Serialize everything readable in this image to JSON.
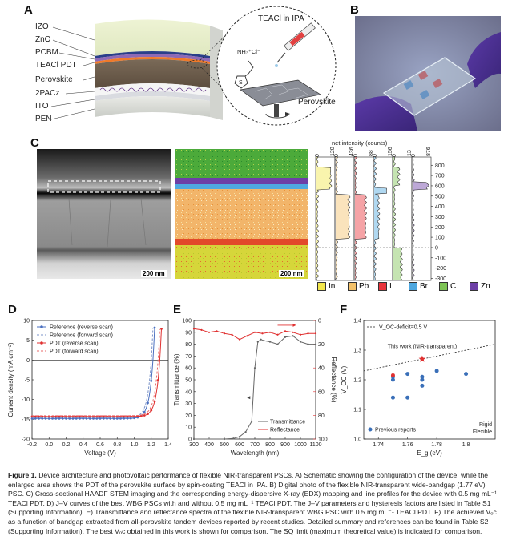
{
  "panelA": {
    "label": "A",
    "layers": [
      "IZO",
      "ZnO",
      "PCBM",
      "TEACl PDT",
      "Perovskite",
      "2PACz",
      "ITO",
      "PEN"
    ],
    "inset_title": "TEACl in IPA",
    "inset_formula": "NH₃⁺Cl⁻",
    "inset_s": "S",
    "inset_perovskite": "Perovskite"
  },
  "panelB": {
    "label": "B"
  },
  "panelC": {
    "label": "C",
    "scalebar_left": "200 nm",
    "scalebar_right": "200 nm",
    "top_axis_title": "net intensity (counts)",
    "top_ticks": [
      [
        "0",
        "120"
      ],
      [
        "0",
        "436"
      ],
      [
        "0",
        "88"
      ],
      [
        "0",
        "156"
      ],
      [
        "0",
        "13"
      ],
      [
        "0",
        "876"
      ]
    ],
    "yticks": [
      "800",
      "700",
      "600",
      "500",
      "400",
      "300",
      "200",
      "100",
      "0",
      "-100",
      "-200",
      "-300"
    ],
    "legend": [
      {
        "name": "In",
        "color": "#f2e64a"
      },
      {
        "name": "Pb",
        "color": "#f4c26a"
      },
      {
        "name": "I",
        "color": "#e8333a"
      },
      {
        "name": "Br",
        "color": "#4fa8e0"
      },
      {
        "name": "C",
        "color": "#7ec455"
      },
      {
        "name": "Zn",
        "color": "#6d3fa6"
      }
    ]
  },
  "panelD": {
    "label": "D",
    "chart_data": {
      "type": "line",
      "xlabel": "Voltage (V)",
      "ylabel": "Current density (mA cm⁻²)",
      "xlim": [
        -0.2,
        1.4
      ],
      "ylim": [
        -20,
        10
      ],
      "xticks": [
        "-0.2",
        "0.0",
        "0.2",
        "0.4",
        "0.6",
        "0.8",
        "1.0",
        "1.2",
        "1.4"
      ],
      "yticks": [
        "10",
        "5",
        "0",
        "-5",
        "-10",
        "-15",
        "-20"
      ],
      "series": [
        {
          "name": "Reference (reverse scan)",
          "color": "#4a6fc0",
          "style": "marker",
          "jsc": -14.8,
          "voc": 1.22
        },
        {
          "name": "Reference (forward scan)",
          "color": "#7b93c9",
          "style": "dash",
          "jsc": -14.6,
          "voc": 1.2
        },
        {
          "name": "PDT (reverse scan)",
          "color": "#e03030",
          "style": "marker",
          "jsc": -14.3,
          "voc": 1.3
        },
        {
          "name": "PDT (forward scan)",
          "color": "#e86a6a",
          "style": "dash",
          "jsc": -14.1,
          "voc": 1.28
        }
      ]
    }
  },
  "panelE": {
    "label": "E",
    "chart_data": {
      "type": "line",
      "xlabel": "Wavelength (nm)",
      "ylabel": "Transmittance (%)",
      "y2label": "Reflectance (%)",
      "xlim": [
        300,
        1100
      ],
      "ylim": [
        0,
        100
      ],
      "y2lim": [
        0,
        100
      ],
      "xticks": [
        "300",
        "400",
        "500",
        "600",
        "700",
        "800",
        "900",
        "1000",
        "1100"
      ],
      "yticks": [
        "100",
        "90",
        "80",
        "70",
        "60",
        "50",
        "40",
        "30",
        "20",
        "10",
        "0"
      ],
      "y2ticks": [
        "0",
        "20",
        "40",
        "60",
        "80",
        "100"
      ],
      "series": [
        {
          "name": "Transmittance",
          "color": "#666666",
          "x": [
            300,
            500,
            560,
            600,
            640,
            680,
            700,
            720,
            740,
            760,
            800,
            850,
            900,
            950,
            1000,
            1050,
            1100
          ],
          "y": [
            0,
            0,
            0.5,
            2,
            6,
            15,
            60,
            82,
            84,
            83,
            82,
            80,
            86,
            87,
            82,
            80,
            80
          ]
        },
        {
          "name": "Reflectance",
          "color": "#e03030",
          "x": [
            300,
            350,
            400,
            450,
            500,
            550,
            600,
            650,
            700,
            750,
            800,
            850,
            900,
            950,
            1000,
            1050,
            1100
          ],
          "y": [
            7,
            8,
            10,
            9,
            11,
            12,
            16,
            13,
            10,
            11,
            10,
            12,
            9,
            10,
            12,
            11,
            11
          ]
        }
      ]
    }
  },
  "panelF": {
    "label": "F",
    "chart_data": {
      "type": "scatter",
      "xlabel": "E_g (eV)",
      "ylabel": "V_OC (V)",
      "xlim": [
        1.73,
        1.82
      ],
      "ylim": [
        1.0,
        1.4
      ],
      "xticks": [
        "1.74",
        "1.76",
        "1.78",
        "1.8"
      ],
      "yticks": [
        "1.4",
        "1.3",
        "1.2",
        "1.1",
        "1.0"
      ],
      "deficit_label": "V_OC-deficit=0.5 V",
      "deficit_line": {
        "x": [
          1.73,
          1.82
        ],
        "y": [
          1.23,
          1.32
        ]
      },
      "this_work_label": "This work (NIR-transparent)",
      "this_work": {
        "x": 1.77,
        "y": 1.27
      },
      "previous_label": "Previous reports",
      "rigid_label": "Rigid",
      "flexible_label": "Flexible",
      "rigid": {
        "x": [
          1.75,
          1.75,
          1.75,
          1.76,
          1.76,
          1.77,
          1.77,
          1.77,
          1.78,
          1.8
        ],
        "y": [
          1.21,
          1.2,
          1.14,
          1.22,
          1.14,
          1.21,
          1.2,
          1.18,
          1.23,
          1.22
        ]
      },
      "flexible": {
        "x": [
          1.75
        ],
        "y": [
          1.215
        ]
      }
    }
  },
  "caption": {
    "lead": "Figure 1.",
    "text": " Device architecture and photovoltaic performance of flexible NIR-transparent PSCs. A) Schematic showing the configuration of the device, while the enlarged area shows the PDT of the perovskite surface by spin-coating TEACl in IPA. B) Digital photo of the flexible NIR-transparent wide-bandgap (1.77 eV) PSC. C) Cross-sectional HAADF STEM imaging and the corresponding energy-dispersive X-ray (EDX) mapping and line profiles for the device with 0.5 mg mL⁻¹ TEACl PDT. D) J–V curves of the best WBG PSCs with and without 0.5 mg mL⁻¹ TEACl PDT. The J–V parameters and hysteresis factors are listed in Table S1 (Supporting Information). E) Transmittance and reflectance spectra of the flexible NIR-transparent WBG PSC with 0.5 mg mL⁻¹ TEACl PDT. F) The achieved Vₒc as a function of bandgap extracted from all-perovskite tandem devices reported by recent studies. Detailed summary and references can be found in Table S2 (Supporting Information). The best Vₒc obtained in this work is shown for comparison. The SQ limit (maximum theoretical value) is indicated for comparison."
  }
}
